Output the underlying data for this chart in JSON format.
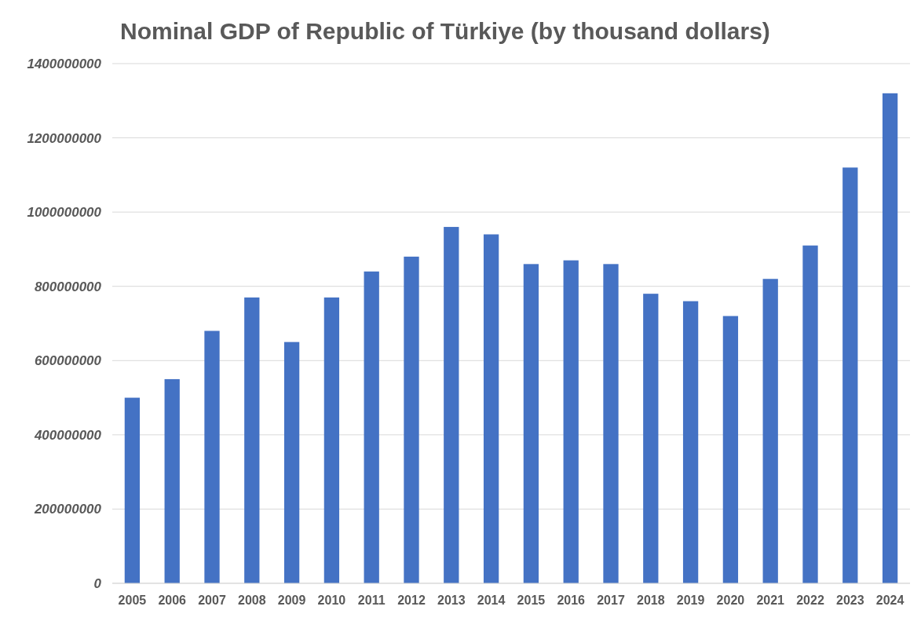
{
  "chart_data": {
    "type": "bar",
    "title": "Nominal GDP of Republic of Türkiye (by thousand dollars)",
    "categories": [
      "2005",
      "2006",
      "2007",
      "2008",
      "2009",
      "2010",
      "2011",
      "2012",
      "2013",
      "2014",
      "2015",
      "2016",
      "2017",
      "2018",
      "2019",
      "2020",
      "2021",
      "2022",
      "2023",
      "2024"
    ],
    "values": [
      500000000,
      550000000,
      680000000,
      770000000,
      650000000,
      770000000,
      840000000,
      880000000,
      960000000,
      940000000,
      860000000,
      870000000,
      860000000,
      780000000,
      760000000,
      720000000,
      820000000,
      910000000,
      1120000000,
      1320000000
    ],
    "color": "#4472c4",
    "ylim": [
      0,
      1400000000
    ],
    "yticks": [
      0,
      200000000,
      400000000,
      600000000,
      800000000,
      1000000000,
      1200000000,
      1400000000
    ],
    "grid": "y"
  }
}
